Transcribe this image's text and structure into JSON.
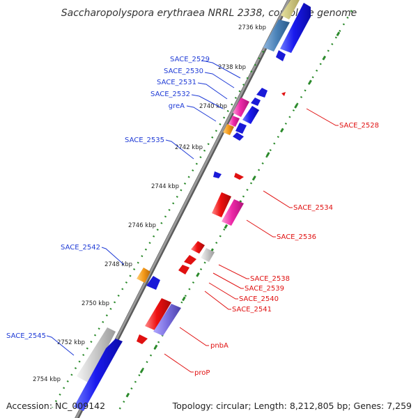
{
  "title": "Saccharopolyspora erythraea NRRL 2338, complete genome",
  "footer": {
    "accession": "Accession: NC_009142",
    "summary": "Topology: circular; Length: 8,212,805 bp; Genes: 7,259"
  },
  "ticks": [
    "2736 kbp",
    "2738 kbp",
    "2740 kbp",
    "2742 kbp",
    "2744 kbp",
    "2746 kbp",
    "2748 kbp",
    "2750 kbp",
    "2752 kbp",
    "2754 kbp"
  ],
  "forward_labels": [
    "SACE_2529",
    "SACE_2530",
    "SACE_2531",
    "SACE_2532",
    "greA",
    "SACE_2535",
    "SACE_2542",
    "SACE_2545"
  ],
  "reverse_labels": [
    "SACE_2528",
    "SACE_2534",
    "SACE_2536",
    "SACE_2538",
    "SACE_2539",
    "SACE_2540",
    "SACE_2541",
    "pnbA",
    "proP"
  ],
  "colors": {
    "forward_label": "#1f3bd6",
    "reverse_label": "#e01010",
    "backbone": "#8a8a8a",
    "tick_dots": "#2b8a2b"
  }
}
